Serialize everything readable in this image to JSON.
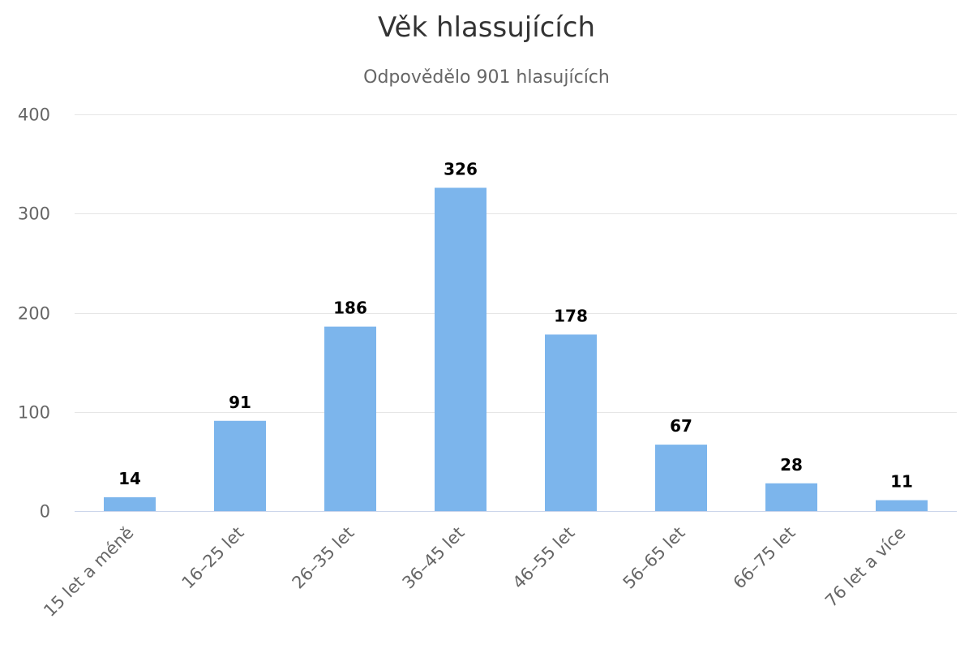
{
  "chart_data": {
    "type": "bar",
    "title": "Věk hlassujících",
    "subtitle": "Odpovědělo 901 hlasujících",
    "categories": [
      "15 let a méně",
      "16–25 let",
      "26–35 let",
      "36–45 let",
      "46–55 let",
      "56–65 let",
      "66–75 let",
      "76 let a více"
    ],
    "values": [
      14,
      91,
      186,
      326,
      178,
      67,
      28,
      11
    ],
    "ylim": [
      0,
      400
    ],
    "yticks": [
      0,
      100,
      200,
      300,
      400
    ],
    "xlabel": "",
    "ylabel": "",
    "grid": true,
    "legend": "none",
    "data_labels": true,
    "colors": {
      "bar": "#7cb5ec",
      "grid": "#e6e6e6",
      "axis": "#ccd6eb",
      "title": "#333333",
      "subtitle": "#666666",
      "tick": "#666666",
      "data_label": "#000000"
    }
  }
}
